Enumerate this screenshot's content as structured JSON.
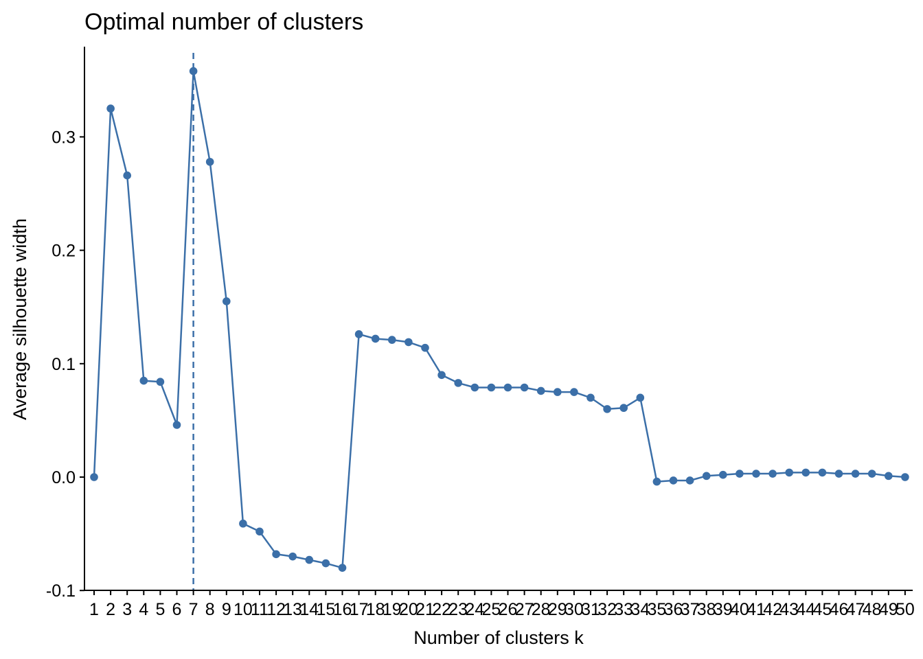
{
  "chart_data": {
    "type": "line",
    "title": "Optimal number of clusters",
    "xlabel": "Number of clusters k",
    "ylabel": "Average silhouette width",
    "x": [
      1,
      2,
      3,
      4,
      5,
      6,
      7,
      8,
      9,
      10,
      11,
      12,
      13,
      14,
      15,
      16,
      17,
      18,
      19,
      20,
      21,
      22,
      23,
      24,
      25,
      26,
      27,
      28,
      29,
      30,
      31,
      32,
      33,
      34,
      35,
      36,
      37,
      38,
      39,
      40,
      41,
      42,
      43,
      44,
      45,
      46,
      47,
      48,
      49,
      50
    ],
    "series": [
      {
        "values": [
          0.0,
          0.325,
          0.266,
          0.085,
          0.084,
          0.046,
          0.358,
          0.278,
          0.155,
          -0.041,
          -0.048,
          -0.068,
          -0.07,
          -0.073,
          -0.076,
          -0.08,
          0.126,
          0.122,
          0.121,
          0.119,
          0.114,
          0.09,
          0.083,
          0.079,
          0.079,
          0.079,
          0.079,
          0.076,
          0.075,
          0.075,
          0.07,
          0.06,
          0.061,
          0.07,
          -0.004,
          -0.003,
          -0.003,
          0.001,
          0.002,
          0.003,
          0.003,
          0.003,
          0.004,
          0.004,
          0.004,
          0.003,
          0.003,
          0.003,
          0.001,
          0.0
        ]
      }
    ],
    "optimal_k": 7,
    "ylim": [
      -0.1,
      0.38
    ],
    "yticks": [
      "-0.1",
      "0.0",
      "0.1",
      "0.2",
      "0.3"
    ],
    "ytick_values": [
      -0.1,
      0.0,
      0.1,
      0.2,
      0.3
    ],
    "grid": false,
    "legend": "none",
    "colors": {
      "line": "#3B6FA8",
      "point": "#3B6FA8",
      "vline": "#3B6FA8",
      "axis": "#000000"
    }
  }
}
